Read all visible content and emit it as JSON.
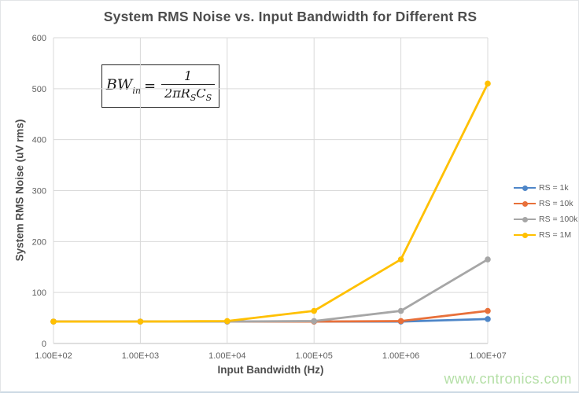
{
  "page": {
    "watermark": "www.cntronics.com",
    "watermark_color": "#b4dfa6"
  },
  "chart_data": {
    "type": "line",
    "title": "System RMS Noise vs. Input Bandwidth for Different RS",
    "xlabel": "Input Bandwidth (Hz)",
    "ylabel": "System RMS Noise (uV rms)",
    "categories": [
      "1.00E+02",
      "1.00E+03",
      "1.00E+04",
      "1.00E+05",
      "1.00E+06",
      "1.00E+07"
    ],
    "y_ticks": [
      0,
      100,
      200,
      300,
      400,
      500,
      600
    ],
    "ylim": [
      0,
      600
    ],
    "grid": true,
    "legend_position": "right",
    "series": [
      {
        "name": "RS = 1k",
        "color": "#4E86C8",
        "values": [
          43,
          43,
          43,
          43,
          43,
          48
        ]
      },
      {
        "name": "RS = 10k",
        "color": "#E8703A",
        "values": [
          43,
          43,
          43,
          43,
          44,
          64
        ]
      },
      {
        "name": "RS = 100k",
        "color": "#A6A6A6",
        "values": [
          43,
          43,
          43,
          44,
          64,
          165
        ]
      },
      {
        "name": "RS = 1M",
        "color": "#FFC000",
        "values": [
          43,
          43,
          44,
          64,
          165,
          510
        ]
      }
    ],
    "annotation_formula": {
      "lhs": "BW",
      "lhs_sub": "in",
      "equals": "=",
      "numerator": "1",
      "den_coef": "2π",
      "den_r": "R",
      "den_r_sub": "S",
      "den_c": "C",
      "den_c_sub": "S"
    },
    "style": {
      "gridline_color": "#D9D9D9",
      "axis_line_color": "#BFBFBF",
      "tick_label_color": "#5f5f5f",
      "title_color": "#4d4d4d"
    }
  }
}
